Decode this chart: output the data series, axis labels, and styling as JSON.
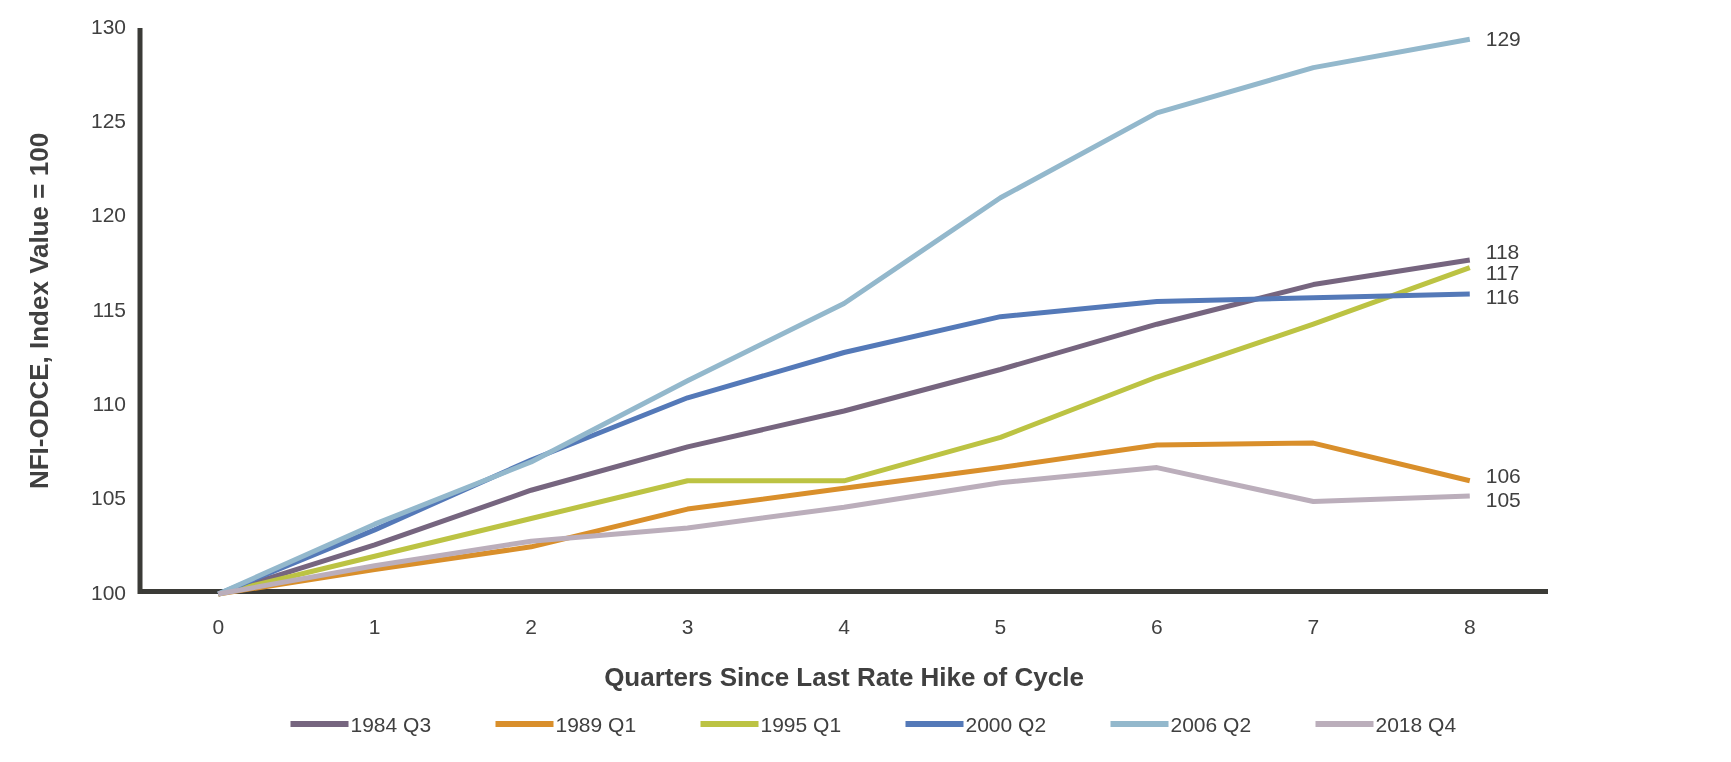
{
  "chart_data": {
    "type": "line",
    "xlabel": "Quarters Since Last Rate Hike of Cycle",
    "ylabel": "NFI-ODCE, Index Value = 100",
    "x": [
      0,
      1,
      2,
      3,
      4,
      5,
      6,
      7,
      8
    ],
    "xlim": [
      -0.5,
      8.5
    ],
    "xticks": [
      0,
      1,
      2,
      3,
      4,
      5,
      6,
      7,
      8
    ],
    "ylim": [
      100,
      130
    ],
    "yticks": [
      100,
      105,
      110,
      115,
      120,
      125,
      130
    ],
    "grid": false,
    "legend": "bottom",
    "marker": "none",
    "line_style": "solid",
    "series": [
      {
        "name": "1984 Q3",
        "color": "#76657f",
        "values": [
          100,
          102.6,
          105.5,
          107.8,
          109.7,
          111.9,
          114.3,
          116.4,
          117.7
        ],
        "value_labels": [
          null,
          null,
          null,
          null,
          null,
          null,
          null,
          null,
          "118"
        ]
      },
      {
        "name": "1989 Q1",
        "color": "#d98f2b",
        "values": [
          100,
          101.3,
          102.5,
          104.5,
          105.6,
          106.7,
          107.9,
          108.0,
          106.0
        ],
        "value_labels": [
          null,
          null,
          null,
          null,
          null,
          null,
          null,
          null,
          "106"
        ]
      },
      {
        "name": "1995 Q1",
        "color": "#bcc343",
        "values": [
          100,
          102.0,
          104.0,
          106.0,
          106.0,
          108.3,
          111.5,
          114.3,
          117.3
        ],
        "value_labels": [
          null,
          null,
          null,
          null,
          null,
          null,
          null,
          null,
          "117"
        ]
      },
      {
        "name": "2000 Q2",
        "color": "#5479b8",
        "values": [
          100,
          103.4,
          107.1,
          110.4,
          112.8,
          114.7,
          115.5,
          115.7,
          115.9
        ],
        "value_labels": [
          null,
          null,
          null,
          null,
          null,
          null,
          null,
          null,
          "116"
        ]
      },
      {
        "name": "2006 Q2",
        "color": "#93b8cc",
        "values": [
          100,
          103.7,
          107.0,
          111.3,
          115.4,
          121.0,
          125.5,
          127.9,
          129.4
        ],
        "value_labels": [
          null,
          null,
          null,
          null,
          null,
          null,
          null,
          null,
          "129"
        ]
      },
      {
        "name": "2018 Q4",
        "color": "#bbaebb",
        "values": [
          100,
          101.5,
          102.8,
          103.5,
          104.6,
          105.9,
          106.7,
          104.9,
          105.2
        ],
        "value_labels": [
          null,
          null,
          null,
          null,
          null,
          null,
          null,
          null,
          "105"
        ]
      }
    ]
  }
}
